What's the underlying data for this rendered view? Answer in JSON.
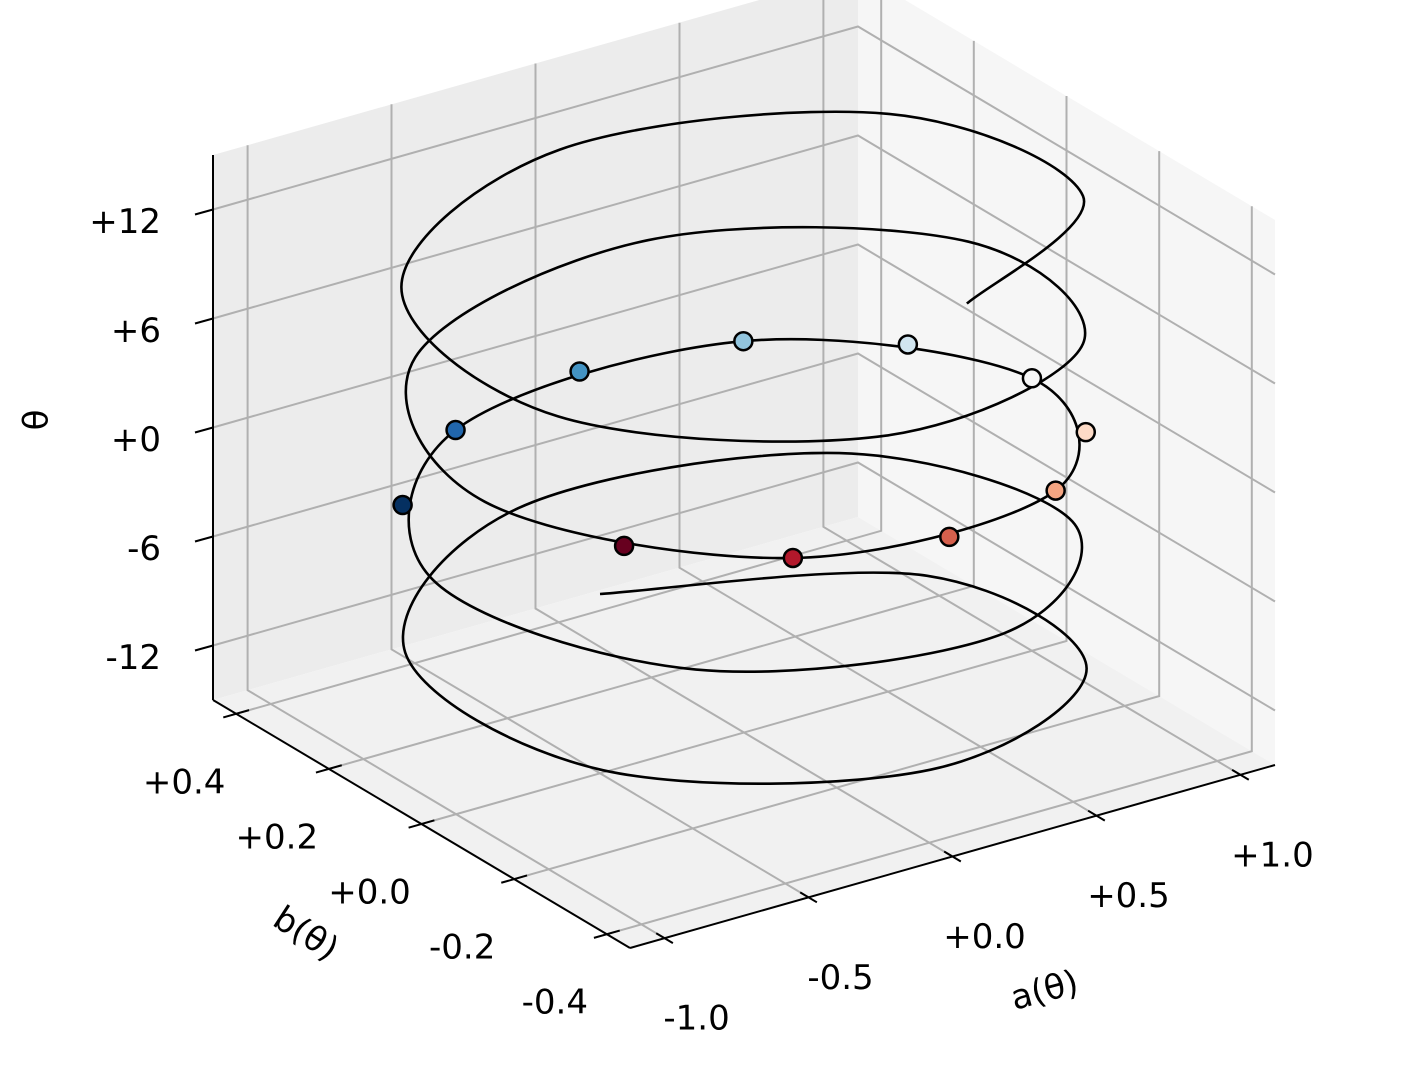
{
  "chart_data": {
    "type": "line3d",
    "xlabel": "a(θ)",
    "ylabel": "b(θ)",
    "zlabel": "θ",
    "xlim": [
      -1.12,
      1.12
    ],
    "ylim": [
      -0.45,
      0.45
    ],
    "zlim": [
      -15,
      15
    ],
    "xticks": [
      {
        "value": -1,
        "label": "-1.0"
      },
      -0.5,
      {
        "value": 0,
        "label": "+0.0"
      },
      {
        "value": 0.5,
        "label": "+0.5"
      },
      {
        "value": 1,
        "label": "+1.0"
      }
    ],
    "yticks": [
      -0.4,
      -0.2,
      {
        "value": 0,
        "label": "+0.0"
      },
      {
        "value": 0.2,
        "label": "+0.2"
      },
      {
        "value": 0.4,
        "label": "+0.4"
      }
    ],
    "zticks": [
      -12,
      -6,
      {
        "value": 0,
        "label": "+0"
      },
      {
        "value": 6,
        "label": "+6"
      },
      {
        "value": 12,
        "label": "+12"
      }
    ],
    "grid": true,
    "series": [
      {
        "type": "line",
        "color": "#000000",
        "x": [
          0.137,
          0.907,
          0.844,
          0.004,
          -0.839,
          -0.911,
          -0.146,
          0.754,
          0.96,
          0.284,
          -0.654,
          -0.99,
          -0.416,
          0.54,
          1,
          0.54,
          -0.416,
          -0.99,
          -0.654,
          0.284,
          0.96,
          0.754,
          -0.146,
          -0.911,
          -0.839,
          0.004,
          0.844,
          0.907,
          0.137
        ],
        "y": [
          0.396,
          0.168,
          -0.215,
          -0.4,
          -0.218,
          0.165,
          0.396,
          0.263,
          -0.112,
          -0.384,
          -0.303,
          0.056,
          0.364,
          0.337,
          0,
          -0.337,
          -0.364,
          -0.056,
          0.303,
          0.384,
          0.112,
          -0.263,
          -0.396,
          -0.165,
          0.218,
          0.4,
          0.215,
          -0.168,
          -0.396
        ],
        "z": [
          -14,
          -13,
          -12,
          -11,
          -10,
          -9,
          -8,
          -7,
          -6,
          -5,
          -4,
          -3,
          -2,
          -1,
          0,
          1,
          2,
          3,
          4,
          5,
          6,
          7,
          8,
          9,
          10,
          11,
          12,
          13,
          14
        ]
      },
      {
        "type": "scatter",
        "x": [
          -0.801,
          -0.416,
          0.071,
          0.54,
          0.878,
          1,
          0.878,
          0.54,
          0.071,
          -0.416,
          -0.801
        ],
        "y": [
          0.239,
          0.364,
          0.399,
          0.337,
          0.192,
          0,
          -0.192,
          -0.337,
          -0.399,
          -0.364,
          -0.239
        ],
        "z": [
          -2.5,
          -2,
          -1.5,
          -1,
          -0.5,
          0,
          0.5,
          1,
          1.5,
          2,
          2.5
        ],
        "colors": [
          "#053061",
          "#2166ac",
          "#4393c3",
          "#92c5de",
          "#d1e5f0",
          "#f7f7f7",
          "#fddbc7",
          "#f4a582",
          "#d6604d",
          "#b2182b",
          "#67001f"
        ]
      }
    ]
  }
}
